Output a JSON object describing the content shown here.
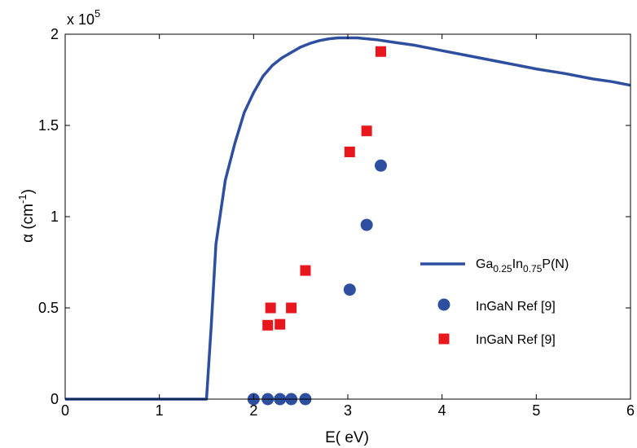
{
  "chart_data": {
    "type": "scatter",
    "xlabel": "E( eV)",
    "ylabel": {
      "base": "α (cm",
      "sup": "-1",
      "close": ")"
    },
    "y_multiplier": {
      "base": "x 10",
      "exp": "5"
    },
    "xlim": [
      0,
      6
    ],
    "ylim": [
      0,
      2
    ],
    "x_ticks": [
      0,
      1,
      2,
      3,
      4,
      5,
      6
    ],
    "y_ticks": [
      0,
      0.5,
      1,
      1.5,
      2
    ],
    "x_tick_labels": [
      "0",
      "1",
      "2",
      "3",
      "4",
      "5",
      "6"
    ],
    "y_tick_labels": [
      "0",
      "0.5",
      "1",
      "1.5",
      "2"
    ],
    "grid": false,
    "legend_position": "right",
    "series": [
      {
        "name": "Ga0.25In0.75P(N)",
        "legend": {
          "p1": "Ga",
          "s1": "0.25",
          "p2": "In",
          "s2": "0.75",
          "p3": "P(N)"
        },
        "type": "line",
        "color": "#2E4FA0",
        "x": [
          0,
          1.5,
          1.55,
          1.6,
          1.7,
          1.8,
          1.9,
          2.0,
          2.1,
          2.2,
          2.3,
          2.4,
          2.5,
          2.6,
          2.7,
          2.8,
          2.9,
          3.0,
          3.1,
          3.2,
          3.3,
          3.5,
          3.7,
          4.0,
          4.3,
          4.6,
          5.0,
          5.3,
          5.6,
          5.8,
          6.0
        ],
        "y": [
          0,
          0,
          0.4,
          0.85,
          1.2,
          1.4,
          1.57,
          1.68,
          1.77,
          1.83,
          1.87,
          1.9,
          1.93,
          1.95,
          1.965,
          1.975,
          1.98,
          1.98,
          1.98,
          1.975,
          1.97,
          1.955,
          1.94,
          1.91,
          1.88,
          1.85,
          1.81,
          1.785,
          1.755,
          1.74,
          1.72
        ]
      },
      {
        "name": "InGaN Ref [9]",
        "type": "scatter",
        "marker": "circle",
        "color": "#2E4FA0",
        "x": [
          2.0,
          2.15,
          2.28,
          2.4,
          2.55,
          3.02,
          3.2,
          3.35
        ],
        "y": [
          0,
          0,
          0,
          0,
          0,
          0.6,
          0.955,
          1.28
        ]
      },
      {
        "name": "InGaN Ref [9]",
        "type": "scatter",
        "marker": "square",
        "color": "#E8161D",
        "x": [
          2.15,
          2.18,
          2.28,
          2.4,
          2.55,
          3.02,
          3.2,
          3.35
        ],
        "y": [
          0.405,
          0.5,
          0.41,
          0.5,
          0.705,
          1.355,
          1.47,
          1.905
        ]
      }
    ]
  }
}
